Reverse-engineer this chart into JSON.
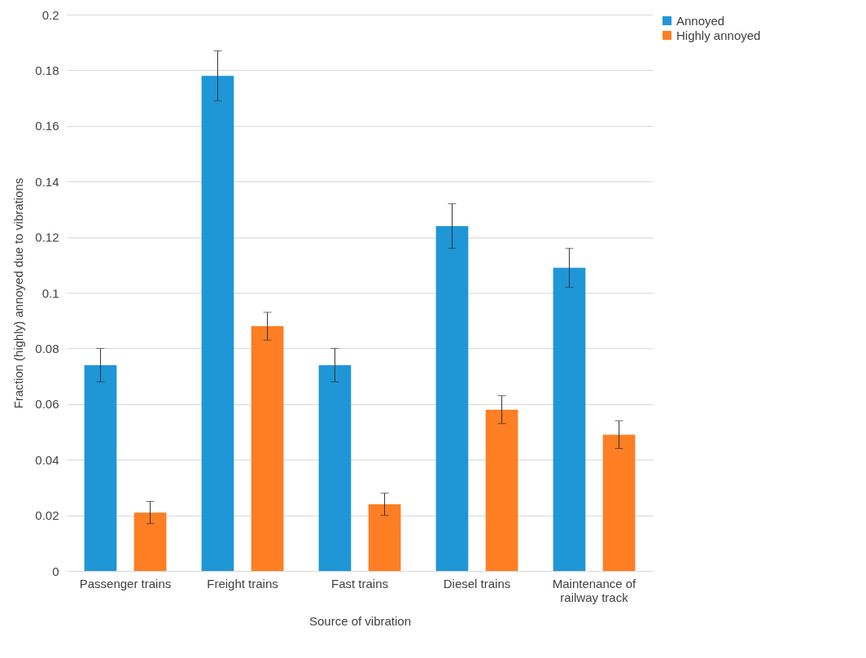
{
  "chart_data": {
    "type": "bar",
    "xlabel": "Source of vibration",
    "ylabel": "Fraction (highly) annoyed due to vibrations",
    "categories": [
      "Passenger trains",
      "Freight trains",
      "Fast trains",
      "Diesel trains",
      "Maintenance of railway track"
    ],
    "series": [
      {
        "name": "Annoyed",
        "color": "#1f96d6",
        "values": [
          0.074,
          0.178,
          0.074,
          0.124,
          0.109
        ],
        "errors": [
          0.006,
          0.009,
          0.006,
          0.008,
          0.007
        ]
      },
      {
        "name": "Highly annoyed",
        "color": "#fd7e23",
        "values": [
          0.021,
          0.088,
          0.024,
          0.058,
          0.049
        ],
        "errors": [
          0.004,
          0.005,
          0.004,
          0.005,
          0.005
        ]
      }
    ],
    "ylim": [
      0,
      0.2
    ],
    "yticks": [
      0,
      0.02,
      0.04,
      0.06,
      0.08,
      0.1,
      0.12,
      0.14,
      0.16,
      0.18,
      0.2
    ],
    "grid": "y",
    "legend": "right"
  }
}
